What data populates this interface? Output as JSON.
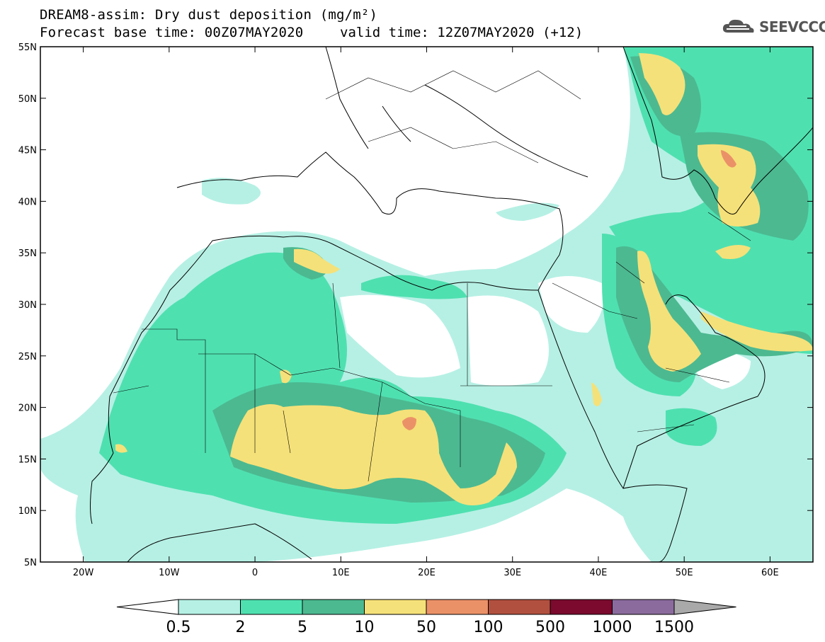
{
  "header": {
    "title": "DREAM8-assim: Dry dust deposition (mg/m²)",
    "base_time": "Forecast base time: 00Z07MAY2020",
    "valid_time": "valid time: 12Z07MAY2020 (+12)"
  },
  "logo": {
    "text": "SEEVCCC",
    "icon": "cloud-icon"
  },
  "map": {
    "lat_labels": [
      "55N",
      "50N",
      "45N",
      "40N",
      "35N",
      "30N",
      "25N",
      "20N",
      "15N",
      "10N",
      "5N"
    ],
    "lon_labels": [
      "20W",
      "10W",
      "0",
      "10E",
      "20E",
      "30E",
      "40E",
      "50E",
      "60E"
    ],
    "extent": {
      "lon": [
        -25,
        65
      ],
      "lat": [
        5,
        55
      ]
    }
  },
  "legend": {
    "labels": [
      "0.5",
      "2",
      "5",
      "10",
      "50",
      "100",
      "500",
      "1000",
      "1500"
    ],
    "colors": [
      "#b6f0e4",
      "#4fe0b0",
      "#4cb991",
      "#f5e179",
      "#eb9168",
      "#b2503f",
      "#7b0a2e",
      "#8b6b9e",
      "#a9a9a9"
    ]
  }
}
